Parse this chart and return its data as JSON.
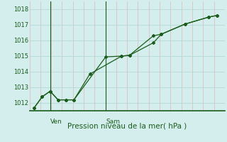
{
  "title": "Pression niveau de la mer( hPa )",
  "bg_color": "#d4eeee",
  "grid_color_v": "#ddb8b8",
  "grid_color_h": "#b0d4d4",
  "line_color": "#1a5c1a",
  "ylim": [
    1011.5,
    1018.5
  ],
  "yticks": [
    1012,
    1013,
    1014,
    1015,
    1016,
    1017,
    1018
  ],
  "num_cols": 18,
  "ven_col": 1,
  "sam_col": 5,
  "line1_x": [
    0,
    0.5,
    1.0,
    1.5,
    2.0,
    2.5,
    3.5,
    5.5,
    6.0,
    7.5,
    8.0,
    9.5,
    11.0,
    11.5
  ],
  "line1_y": [
    1011.7,
    1012.4,
    1012.75,
    1012.2,
    1012.2,
    1012.2,
    1013.85,
    1015.0,
    1015.05,
    1016.3,
    1016.4,
    1017.05,
    1017.5,
    1017.6
  ],
  "line2_x": [
    0,
    0.5,
    1.0,
    1.5,
    2.0,
    2.5,
    4.5,
    5.5,
    6.0,
    7.5,
    8.0,
    9.5,
    11.0,
    11.5
  ],
  "line2_y": [
    1011.7,
    1012.4,
    1012.75,
    1012.2,
    1012.2,
    1012.2,
    1014.95,
    1015.0,
    1015.05,
    1015.85,
    1016.4,
    1017.05,
    1017.5,
    1017.6
  ],
  "xlim": [
    -0.3,
    12.0
  ],
  "ven_x": 1.0,
  "sam_x": 4.5
}
